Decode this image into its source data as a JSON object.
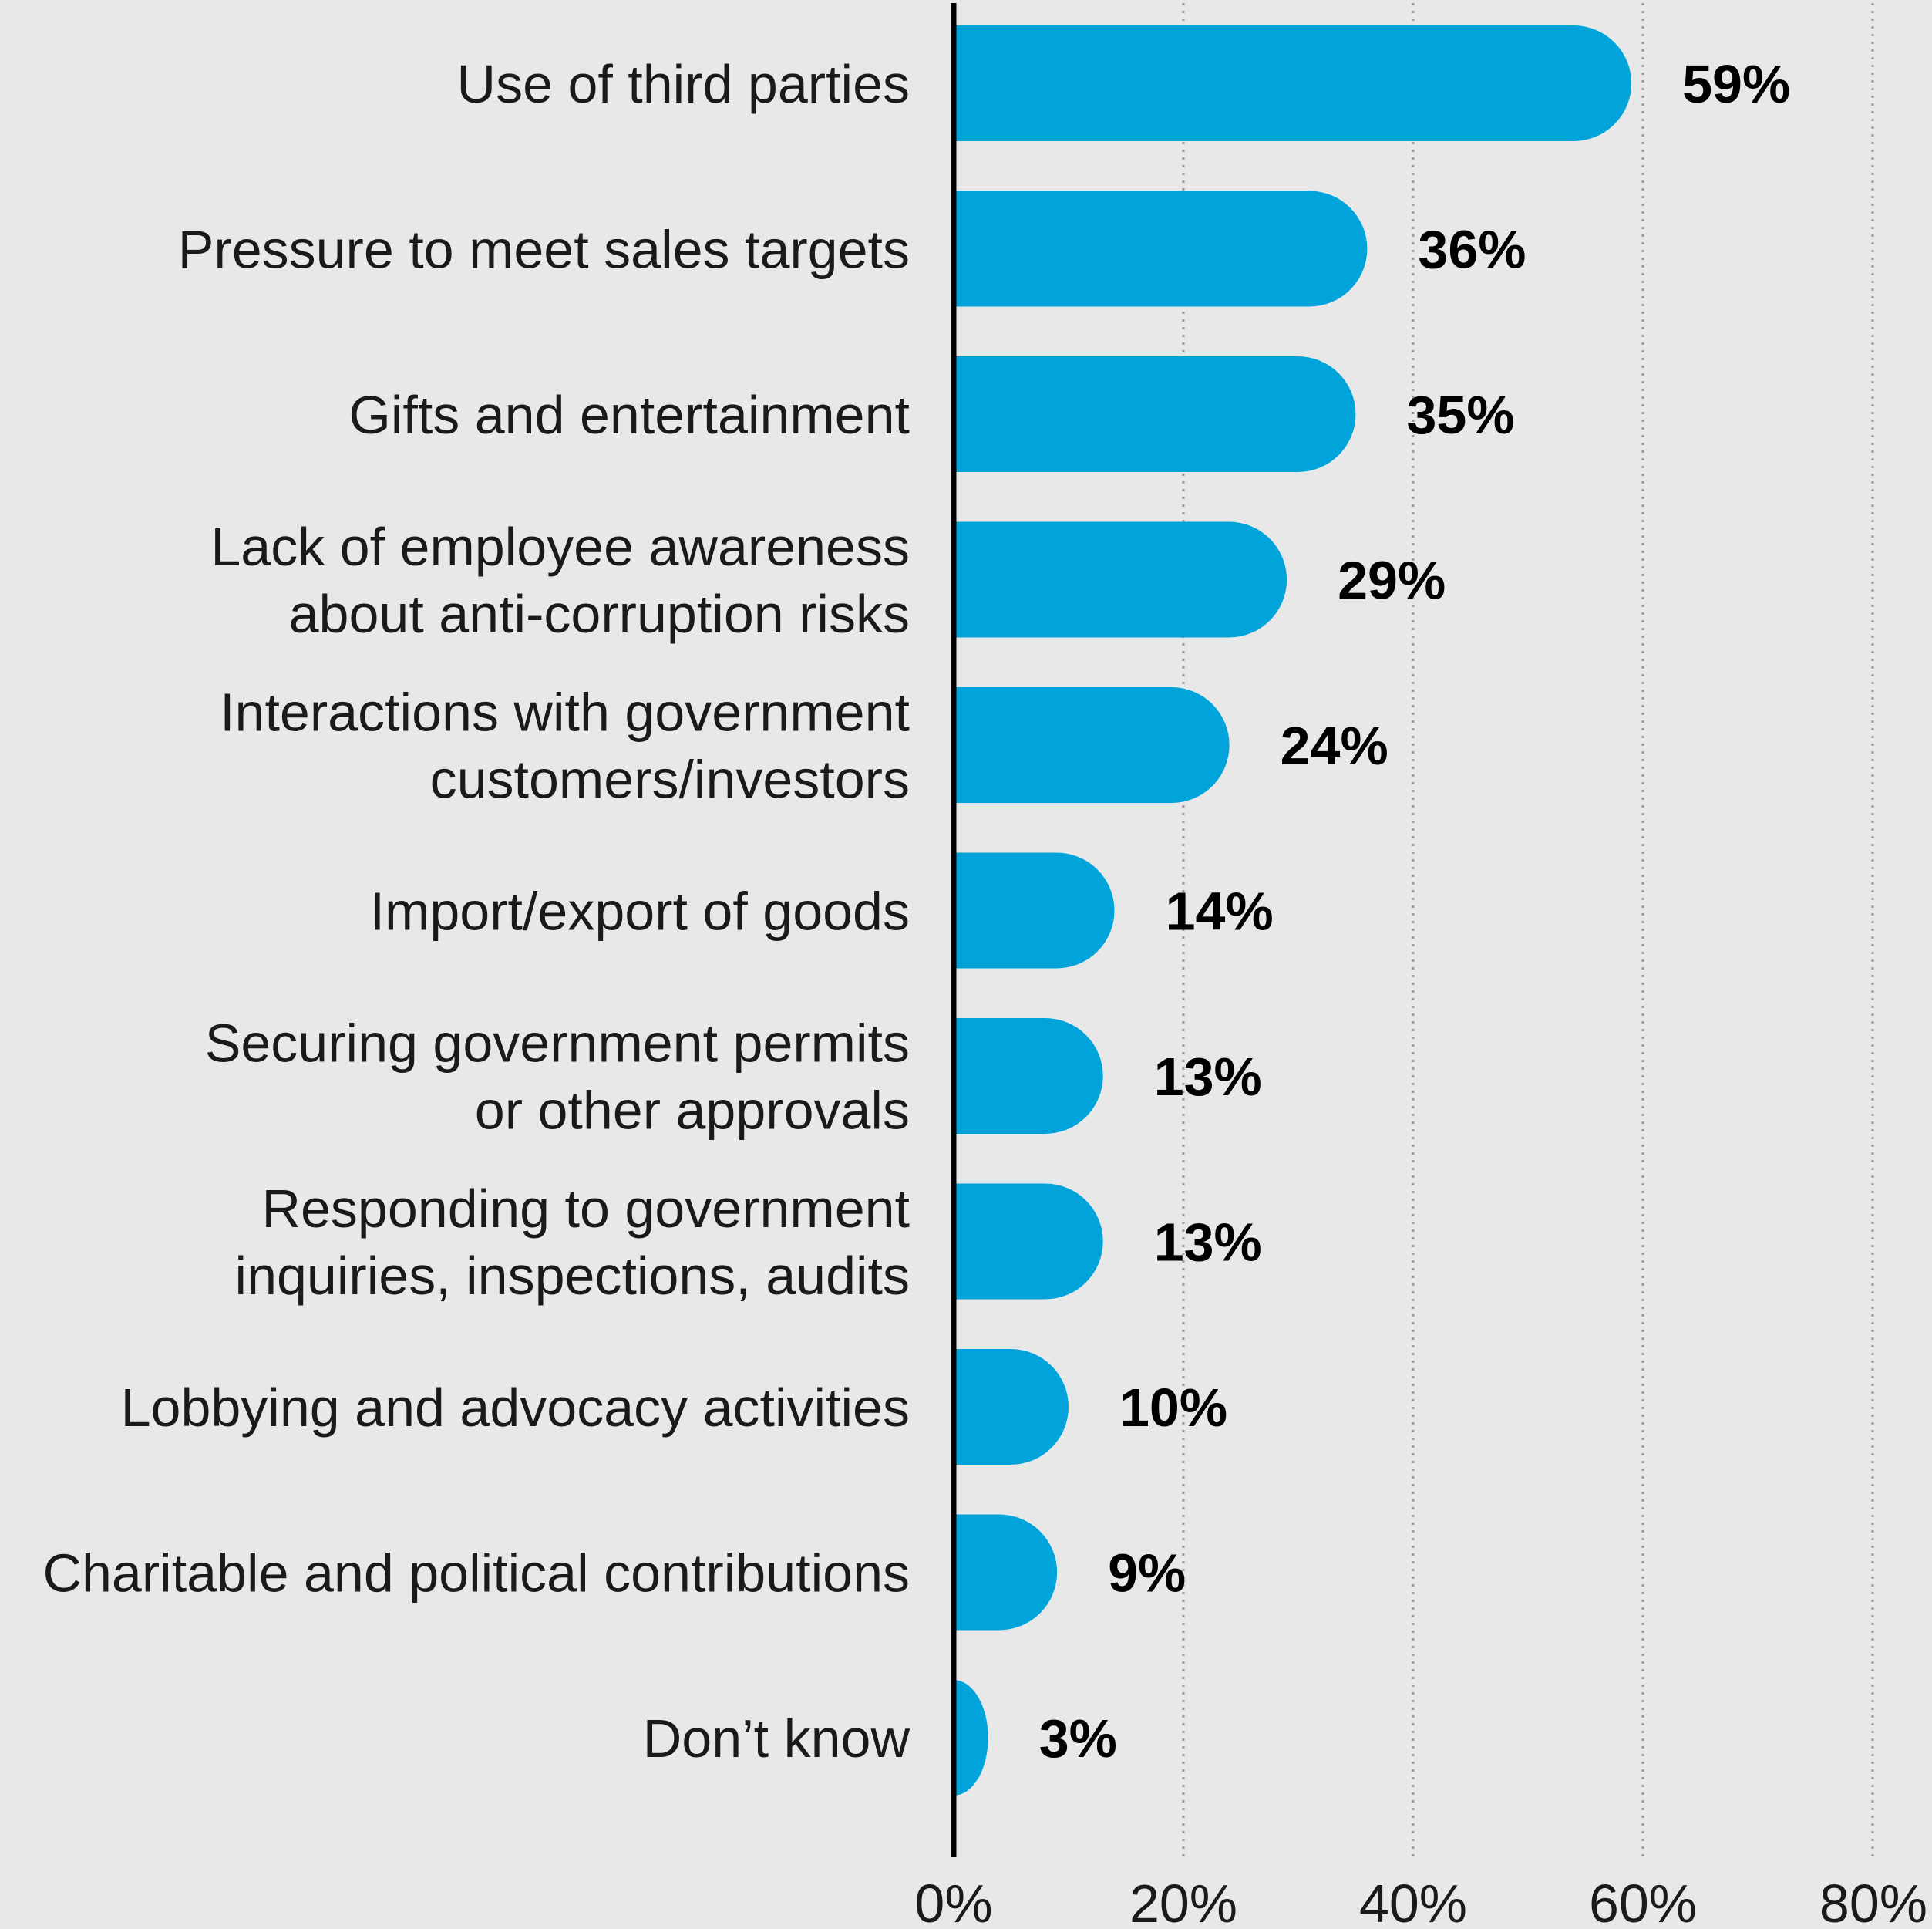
{
  "colors": {
    "background": "#e8e8e8",
    "bar": "#00a3da",
    "axis": "#000000",
    "grid": "#9a9a9a",
    "text": "#1a1a1a"
  },
  "chart_data": {
    "type": "bar",
    "orientation": "horizontal",
    "title": "",
    "xlabel": "",
    "ylabel": "",
    "xlim": [
      0,
      80
    ],
    "grid": "vertical dotted",
    "categories": [
      [
        "Use of third parties"
      ],
      [
        "Pressure to meet sales targets"
      ],
      [
        "Gifts and entertainment"
      ],
      [
        "Lack of employee awareness",
        "about anti-corruption risks"
      ],
      [
        "Interactions with government",
        "customers/investors"
      ],
      [
        "Import/export of goods"
      ],
      [
        "Securing government permits",
        "or other approvals"
      ],
      [
        "Responding to government",
        "inquiries, inspections, audits"
      ],
      [
        "Lobbying and advocacy activities"
      ],
      [
        "Charitable and political contributions"
      ],
      [
        "Don’t know"
      ]
    ],
    "values": [
      59,
      36,
      35,
      29,
      24,
      14,
      13,
      13,
      10,
      9,
      3
    ],
    "value_labels": [
      "59%",
      "36%",
      "35%",
      "29%",
      "24%",
      "14%",
      "13%",
      "13%",
      "10%",
      "9%",
      "3%"
    ],
    "x_ticks": [
      0,
      20,
      40,
      60,
      80
    ],
    "x_tick_labels": [
      "0%",
      "20%",
      "40%",
      "60%",
      "80%"
    ]
  }
}
